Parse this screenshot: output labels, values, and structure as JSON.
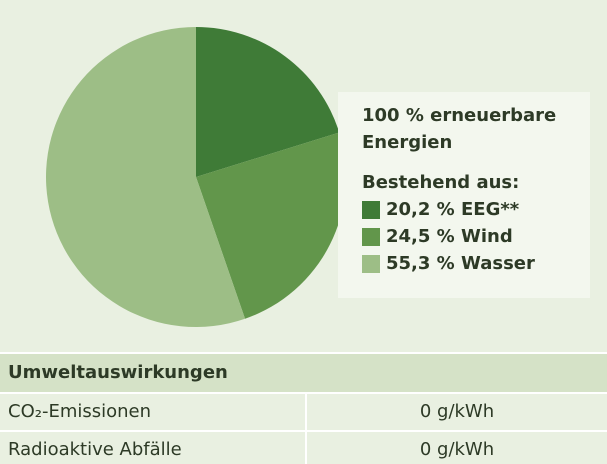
{
  "chart_data": {
    "type": "pie",
    "title": "100 % erneuerbare Energien",
    "subtitle": "Bestehend aus:",
    "categories": [
      "EEG**",
      "Wind",
      "Wasser"
    ],
    "values": [
      20.2,
      24.5,
      55.3
    ],
    "value_labels": [
      "20,2 %",
      "24,5 %",
      "55,3 %"
    ],
    "colors": [
      "#3f7b37",
      "#62964b",
      "#9dbe86"
    ]
  },
  "table": {
    "title": "Umweltauswirkungen",
    "rows": [
      [
        "CO₂-Emissionen",
        "0 g/kWh"
      ],
      [
        "Radioaktive Abfälle",
        "0 g/kWh"
      ]
    ]
  }
}
